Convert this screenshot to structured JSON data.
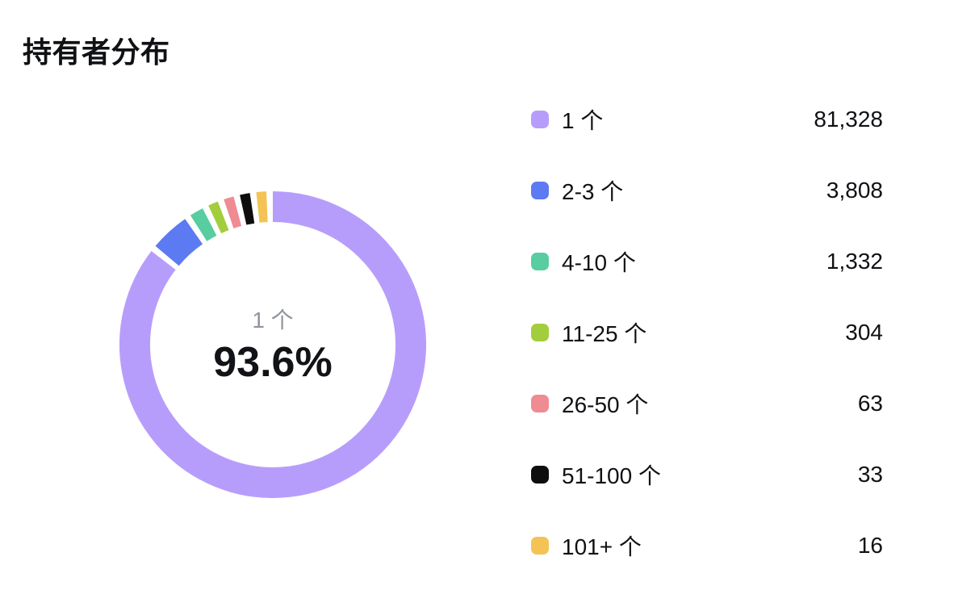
{
  "title": "持有者分布",
  "chart": {
    "type": "donut",
    "background_color": "#ffffff",
    "ring_thickness_ratio": 0.2,
    "gap_degrees": 2.4,
    "start_angle_deg": -90,
    "center_label": "1 个",
    "center_percent": "93.6%",
    "segments": [
      {
        "label": "1 个",
        "value": 81328,
        "value_text": "81,328",
        "color": "#b79dfb"
      },
      {
        "label": "2-3 个",
        "value": 3808,
        "value_text": "3,808",
        "color": "#5c7af2"
      },
      {
        "label": "4-10 个",
        "value": 1332,
        "value_text": "1,332",
        "color": "#58cd9f"
      },
      {
        "label": "11-25 个",
        "value": 304,
        "value_text": "304",
        "color": "#a2ce3d"
      },
      {
        "label": "26-50 个",
        "value": 63,
        "value_text": "63",
        "color": "#ef8b93"
      },
      {
        "label": "51-100 个",
        "value": 33,
        "value_text": "33",
        "color": "#0e0e0e"
      },
      {
        "label": "101+ 个",
        "value": 16,
        "value_text": "16",
        "color": "#f3c455"
      }
    ]
  }
}
